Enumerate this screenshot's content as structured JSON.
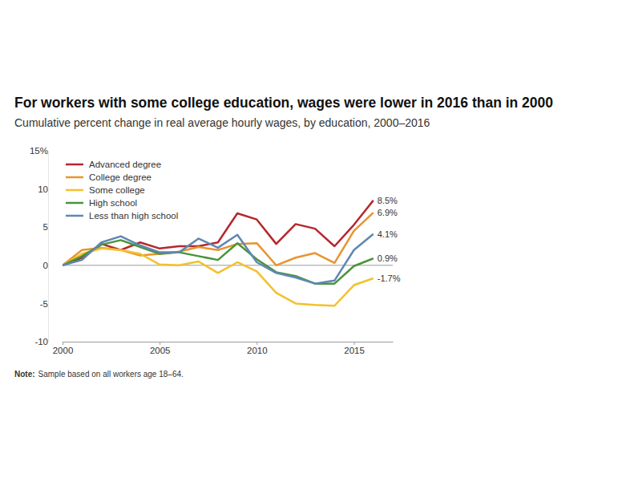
{
  "chart_data": {
    "type": "line",
    "title": "For workers with some college education, wages were lower in 2016 than in 2000",
    "subtitle": "Cumulative percent change in real average hourly wages, by education, 2000–2016",
    "note": {
      "label": "Note:",
      "text": "Sample based on all workers age 18–64."
    },
    "x": [
      2000,
      2001,
      2002,
      2003,
      2004,
      2005,
      2006,
      2007,
      2008,
      2009,
      2010,
      2011,
      2012,
      2013,
      2014,
      2015,
      2016
    ],
    "xlim": [
      2000,
      2017
    ],
    "xticks": [
      2000,
      2005,
      2010,
      2015
    ],
    "ylim": [
      -10,
      15
    ],
    "yticks": [
      {
        "value": 15,
        "label": "15%"
      },
      10,
      5,
      0,
      -5,
      -10
    ],
    "grid": false,
    "legend": "top-left",
    "data_labels": true,
    "series": [
      {
        "name": "Advanced degree",
        "color": "#b5272d",
        "values": [
          0,
          1.0,
          2.8,
          2.0,
          3.0,
          2.2,
          2.5,
          2.5,
          3.0,
          6.8,
          6.0,
          2.8,
          5.4,
          4.8,
          2.5,
          5.3,
          8.5
        ],
        "value_labels": [
          null,
          null,
          null,
          null,
          null,
          null,
          null,
          null,
          null,
          null,
          null,
          null,
          null,
          null,
          null,
          null,
          "8.5%"
        ]
      },
      {
        "name": "College degree",
        "color": "#e8942e",
        "values": [
          0,
          2.0,
          2.3,
          2.0,
          1.3,
          1.5,
          1.8,
          2.4,
          2.0,
          2.8,
          2.9,
          0.0,
          1.0,
          1.6,
          0.3,
          4.5,
          6.9
        ],
        "value_labels": [
          null,
          null,
          null,
          null,
          null,
          null,
          null,
          null,
          null,
          null,
          null,
          null,
          null,
          null,
          null,
          null,
          "6.9%"
        ]
      },
      {
        "name": "Some college",
        "color": "#f2c12e",
        "values": [
          0,
          1.5,
          2.2,
          2.0,
          1.5,
          0.1,
          0.0,
          0.5,
          -1.0,
          0.4,
          -0.8,
          -3.6,
          -5.0,
          -5.2,
          -5.3,
          -2.6,
          -1.7
        ],
        "value_labels": [
          null,
          null,
          null,
          null,
          null,
          null,
          null,
          null,
          null,
          null,
          null,
          null,
          null,
          null,
          null,
          null,
          "-1.7%"
        ]
      },
      {
        "name": "High school",
        "color": "#4a943c",
        "values": [
          0,
          1.2,
          2.7,
          3.3,
          2.4,
          1.5,
          1.7,
          1.2,
          0.7,
          2.9,
          0.8,
          -0.9,
          -1.4,
          -2.4,
          -2.4,
          -0.1,
          0.9
        ],
        "value_labels": [
          null,
          null,
          null,
          null,
          null,
          null,
          null,
          null,
          null,
          null,
          null,
          null,
          null,
          null,
          null,
          null,
          "0.9%"
        ]
      },
      {
        "name": "Less than high school",
        "color": "#5f87b3",
        "values": [
          0,
          0.7,
          3.0,
          3.8,
          2.6,
          1.7,
          1.7,
          3.5,
          2.3,
          4.0,
          0.4,
          -1.0,
          -1.6,
          -2.4,
          -2.0,
          2.0,
          4.1
        ],
        "value_labels": [
          null,
          null,
          null,
          null,
          null,
          null,
          null,
          null,
          null,
          null,
          null,
          null,
          null,
          null,
          null,
          null,
          "4.1%"
        ]
      }
    ]
  }
}
